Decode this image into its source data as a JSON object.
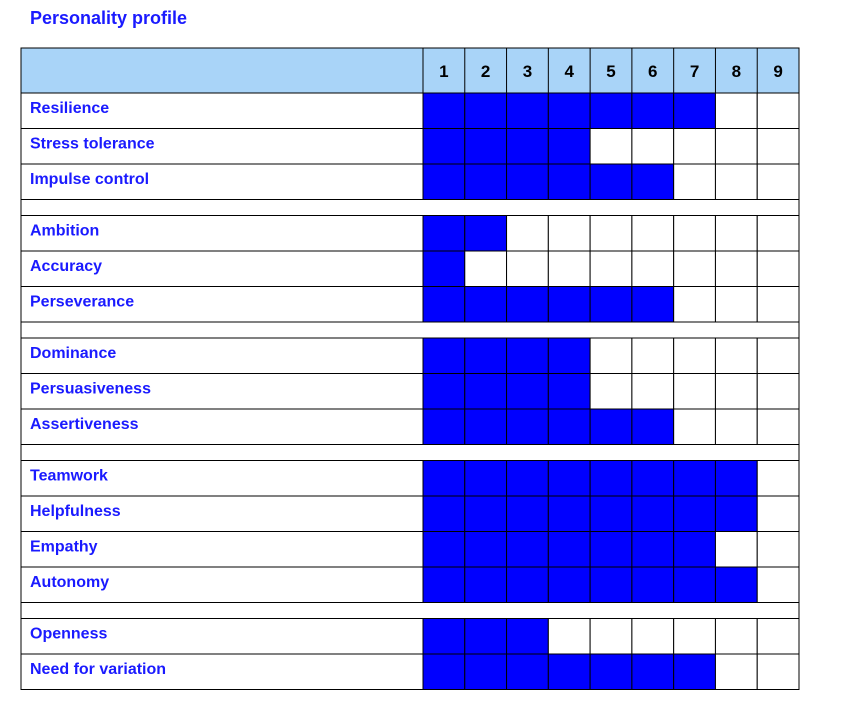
{
  "title": "Personality profile",
  "colors": {
    "header_bg": "#a9d4f8",
    "fill": "#0000ff",
    "label_text": "#1a1aff",
    "grid": "#000000"
  },
  "chart_data": {
    "type": "table",
    "title": "Personality profile",
    "scale": [
      "1",
      "2",
      "3",
      "4",
      "5",
      "6",
      "7",
      "8",
      "9"
    ],
    "groups": [
      {
        "rows": [
          {
            "label": "Resilience",
            "value": 7
          },
          {
            "label": "Stress tolerance",
            "value": 4
          },
          {
            "label": "Impulse control",
            "value": 6
          }
        ]
      },
      {
        "rows": [
          {
            "label": "Ambition",
            "value": 2
          },
          {
            "label": "Accuracy",
            "value": 1
          },
          {
            "label": "Perseverance",
            "value": 6
          }
        ]
      },
      {
        "rows": [
          {
            "label": "Dominance",
            "value": 4
          },
          {
            "label": "Persuasiveness",
            "value": 4
          },
          {
            "label": "Assertiveness",
            "value": 6
          }
        ]
      },
      {
        "rows": [
          {
            "label": "Teamwork",
            "value": 8
          },
          {
            "label": "Helpfulness",
            "value": 8
          },
          {
            "label": "Empathy",
            "value": 7
          },
          {
            "label": "Autonomy",
            "value": 8
          }
        ]
      },
      {
        "rows": [
          {
            "label": "Openness",
            "value": 3
          },
          {
            "label": "Need for variation",
            "value": 7
          }
        ]
      }
    ]
  }
}
